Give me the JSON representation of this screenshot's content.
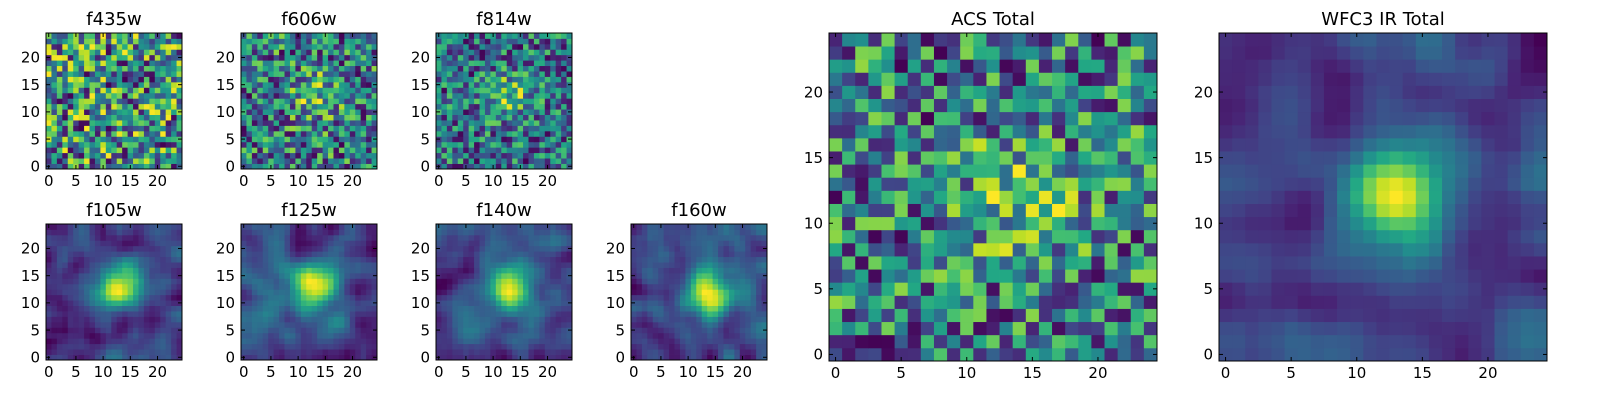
{
  "chart_data": [
    {
      "type": "heatmap",
      "title": "f435w",
      "xlim": [
        0,
        24
      ],
      "ylim": [
        0,
        24
      ],
      "x_ticks": [
        0,
        5,
        10,
        15,
        20
      ],
      "y_ticks": [
        0,
        5,
        10,
        15,
        20
      ],
      "grid_size": 25,
      "colormap": "viridis",
      "pattern": "noise",
      "seed": 11,
      "peak": [
        13,
        13
      ],
      "peak_strength": 0.0
    },
    {
      "type": "heatmap",
      "title": "f606w",
      "xlim": [
        0,
        24
      ],
      "ylim": [
        0,
        24
      ],
      "x_ticks": [
        0,
        5,
        10,
        15,
        20
      ],
      "y_ticks": [
        0,
        5,
        10,
        15,
        20
      ],
      "grid_size": 25,
      "colormap": "viridis",
      "pattern": "noise",
      "seed": 23,
      "peak": [
        13,
        13
      ],
      "peak_strength": 0.35
    },
    {
      "type": "heatmap",
      "title": "f814w",
      "xlim": [
        0,
        24
      ],
      "ylim": [
        0,
        24
      ],
      "x_ticks": [
        0,
        5,
        10,
        15,
        20
      ],
      "y_ticks": [
        0,
        5,
        10,
        15,
        20
      ],
      "grid_size": 25,
      "colormap": "viridis",
      "pattern": "noise",
      "seed": 37,
      "peak": [
        13,
        13
      ],
      "peak_strength": 0.45
    },
    {
      "type": "heatmap",
      "title": "f105w",
      "xlim": [
        0,
        24
      ],
      "ylim": [
        0,
        24
      ],
      "x_ticks": [
        0,
        5,
        10,
        15,
        20
      ],
      "y_ticks": [
        0,
        5,
        10,
        15,
        20
      ],
      "grid_size": 25,
      "colormap": "viridis",
      "pattern": "smooth",
      "seed": 41,
      "peak": [
        13,
        13
      ],
      "peak_strength": 0.7
    },
    {
      "type": "heatmap",
      "title": "f125w",
      "xlim": [
        0,
        24
      ],
      "ylim": [
        0,
        24
      ],
      "x_ticks": [
        0,
        5,
        10,
        15,
        20
      ],
      "y_ticks": [
        0,
        5,
        10,
        15,
        20
      ],
      "grid_size": 25,
      "colormap": "viridis",
      "pattern": "smooth",
      "seed": 53,
      "peak": [
        13,
        13
      ],
      "peak_strength": 0.65
    },
    {
      "type": "heatmap",
      "title": "f140w",
      "xlim": [
        0,
        24
      ],
      "ylim": [
        0,
        24
      ],
      "x_ticks": [
        0,
        5,
        10,
        15,
        20
      ],
      "y_ticks": [
        0,
        5,
        10,
        15,
        20
      ],
      "grid_size": 25,
      "colormap": "viridis",
      "pattern": "smooth",
      "seed": 67,
      "peak": [
        13,
        13
      ],
      "peak_strength": 0.65
    },
    {
      "type": "heatmap",
      "title": "f160w",
      "xlim": [
        0,
        24
      ],
      "ylim": [
        0,
        24
      ],
      "x_ticks": [
        0,
        5,
        10,
        15,
        20
      ],
      "y_ticks": [
        0,
        5,
        10,
        15,
        20
      ],
      "grid_size": 25,
      "colormap": "viridis",
      "pattern": "smooth",
      "seed": 79,
      "peak": [
        14,
        12
      ],
      "peak_strength": 0.7
    },
    {
      "type": "heatmap",
      "title": "ACS Total",
      "xlim": [
        0,
        24
      ],
      "ylim": [
        0,
        24
      ],
      "x_ticks": [
        0,
        5,
        10,
        15,
        20
      ],
      "y_ticks": [
        0,
        5,
        10,
        15,
        20
      ],
      "grid_size": 25,
      "colormap": "viridis",
      "pattern": "noise",
      "seed": 97,
      "peak": [
        14,
        12
      ],
      "peak_strength": 0.35
    },
    {
      "type": "heatmap",
      "title": "WFC3 IR Total",
      "xlim": [
        0,
        24
      ],
      "ylim": [
        0,
        24
      ],
      "x_ticks": [
        0,
        5,
        10,
        15,
        20
      ],
      "y_ticks": [
        0,
        5,
        10,
        15,
        20
      ],
      "grid_size": 25,
      "colormap": "viridis",
      "pattern": "smooth",
      "seed": 103,
      "peak": [
        13,
        12
      ],
      "peak_strength": 0.85
    }
  ]
}
